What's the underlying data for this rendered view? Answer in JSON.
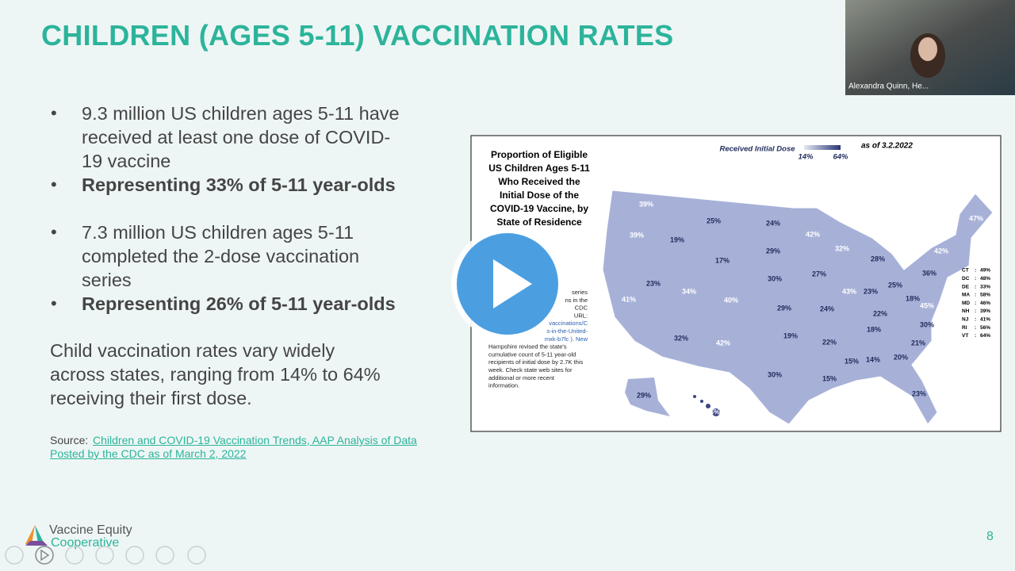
{
  "slide": {
    "title": "CHILDREN (AGES 5-11) VACCINATION RATES",
    "bullets": [
      {
        "lines": [
          "9.3 million US children ages 5-11 have",
          "received at least one dose of COVID-",
          "19 vaccine"
        ]
      },
      {
        "lines": [
          "Representing 33% of 5-11 year-olds"
        ]
      },
      {
        "lines": [
          "7.3 million US children ages 5-11",
          "completed the 2-dose vaccination",
          "series"
        ]
      },
      {
        "lines": [
          "Representing 26% of 5-11 year-olds"
        ]
      }
    ],
    "paragraph": [
      "Child vaccination rates vary widely",
      "across states, ranging from 14% to 64%",
      "receiving their first dose."
    ],
    "source_label": "Source:",
    "source_link": [
      "Children and COVID-19 Vaccination Trends, AAP Analysis of Data",
      "Posted by the CDC as of March 2, 2022"
    ],
    "logo": [
      "Vaccine Equity",
      "Cooperative"
    ],
    "page_number": "8"
  },
  "map": {
    "title": [
      "Proportion of Eligible",
      "US Children Ages 5-11",
      "Who Received the",
      "Initial Dose of the",
      "COVID-19 Vaccine, by",
      "State of Residence"
    ],
    "legend_title": "Received Initial Dose",
    "legend_min": "14%",
    "legend_max": "64%",
    "date_prefix": "as of",
    "date": "3.2.2022",
    "footnote": [
      "series",
      "ns in the",
      "CDC",
      "URL:",
      "vaccinations/C",
      "s-in-the-United-",
      "mxk-b7fc ). New",
      "Hampshire revised the state's",
      "cumulative count of 5-11 year-old",
      "recipients of initial dose by 2.7K  this",
      "week.  Check state web sites for",
      "additional or more recent",
      "information."
    ],
    "state_labels": [
      "39%",
      "39%",
      "19%",
      "25%",
      "17%",
      "24%",
      "29%",
      "42%",
      "30%",
      "32%",
      "28%",
      "27%",
      "43%",
      "23%",
      "25%",
      "36%",
      "42%",
      "47%",
      "41%",
      "23%",
      "34%",
      "40%",
      "29%",
      "24%",
      "22%",
      "18%",
      "45%",
      "30%",
      "18%",
      "32%",
      "42%",
      "19%",
      "22%",
      "21%",
      "15%",
      "14%",
      "20%",
      "30%",
      "15%",
      "23%",
      "29%",
      "46%"
    ],
    "separator": ":",
    "table": [
      [
        "CT",
        "49%"
      ],
      [
        "DC",
        "48%"
      ],
      [
        "DE",
        "33%"
      ],
      [
        "MA",
        "58%"
      ],
      [
        "MD",
        "46%"
      ],
      [
        "NH",
        "39%"
      ],
      [
        "NJ",
        "41%"
      ],
      [
        "RI",
        "56%"
      ],
      [
        "VT",
        "64%"
      ]
    ]
  },
  "video": {
    "participant": "Alexandra Quinn, He..."
  }
}
